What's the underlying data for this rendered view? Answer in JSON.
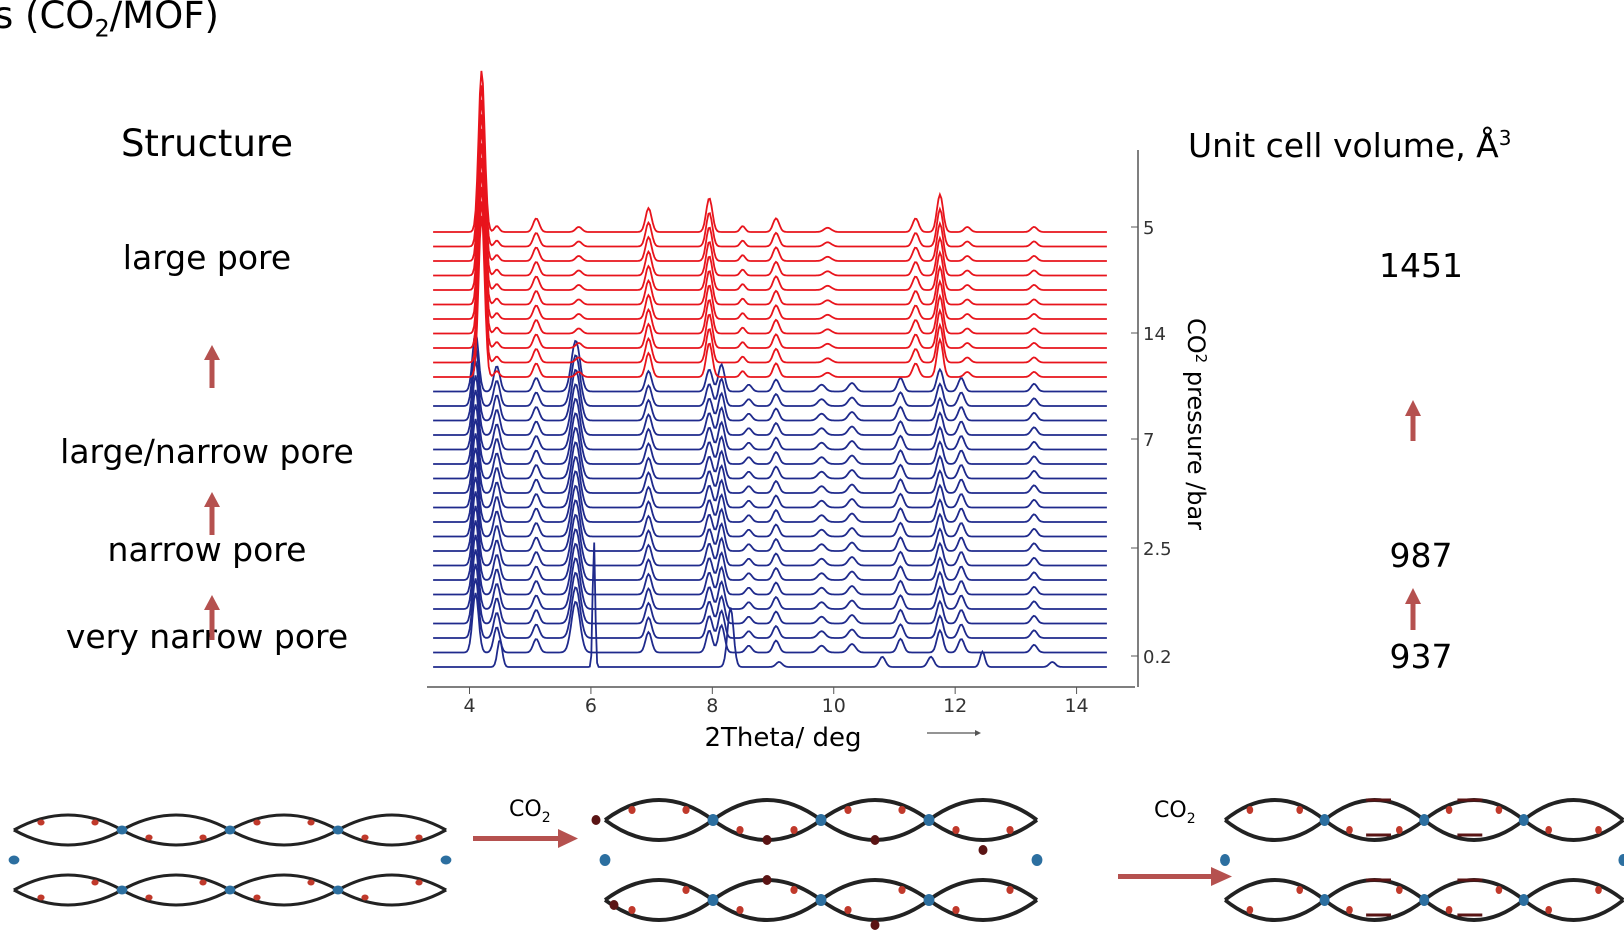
{
  "header": {
    "title_prefix": "s (CO",
    "title_sub": "2",
    "title_suffix": "/MOF)"
  },
  "left": {
    "heading": "Structure",
    "labels": [
      "large pore",
      "large/narrow pore",
      "narrow pore",
      "very narrow pore"
    ]
  },
  "right": {
    "heading_text": "Unit cell volume, Å",
    "heading_sup": "3",
    "values": [
      "1451",
      "987",
      "937"
    ]
  },
  "colors": {
    "red": "#e8141c",
    "blue": "#1f2a8c",
    "arrow": "#b5514f"
  },
  "chart_data": {
    "type": "line",
    "title": "",
    "xlabel": "2Theta/ deg",
    "ylabel_prefix": "CO",
    "ylabel_sub": "2",
    "ylabel_suffix": " pressure /bar",
    "xlim": [
      3.3,
      14.6
    ],
    "x_ticks": [
      "4",
      "6",
      "8",
      "10",
      "12",
      "14"
    ],
    "x_tick_values": [
      4,
      6,
      8,
      10,
      12,
      14
    ],
    "pressure_ticks": [
      "5",
      "14",
      "7",
      "2.5",
      "0.2"
    ],
    "series_groups": [
      {
        "color": "red",
        "count": 11,
        "peaks": [
          {
            "x": 4.2,
            "h": 9.5,
            "w": 0.05
          },
          {
            "x": 4.45,
            "h": 0.35,
            "w": 0.04
          },
          {
            "x": 5.1,
            "h": 0.8,
            "w": 0.05
          },
          {
            "x": 5.8,
            "h": 0.3,
            "w": 0.05
          },
          {
            "x": 6.95,
            "h": 1.4,
            "w": 0.05
          },
          {
            "x": 7.95,
            "h": 2.0,
            "w": 0.05
          },
          {
            "x": 8.5,
            "h": 0.35,
            "w": 0.04
          },
          {
            "x": 9.05,
            "h": 0.8,
            "w": 0.05
          },
          {
            "x": 9.9,
            "h": 0.25,
            "w": 0.06
          },
          {
            "x": 11.35,
            "h": 0.8,
            "w": 0.05
          },
          {
            "x": 11.75,
            "h": 2.2,
            "w": 0.05
          },
          {
            "x": 12.2,
            "h": 0.3,
            "w": 0.05
          },
          {
            "x": 13.3,
            "h": 0.3,
            "w": 0.05
          }
        ]
      },
      {
        "color": "blue",
        "count": 20,
        "peaks": [
          {
            "x": 4.1,
            "h": 3.5,
            "w": 0.05
          },
          {
            "x": 4.45,
            "h": 1.5,
            "w": 0.05
          },
          {
            "x": 5.1,
            "h": 0.8,
            "w": 0.05
          },
          {
            "x": 5.75,
            "h": 3.0,
            "w": 0.07
          },
          {
            "x": 6.95,
            "h": 1.2,
            "w": 0.05
          },
          {
            "x": 7.95,
            "h": 1.3,
            "w": 0.05
          },
          {
            "x": 8.15,
            "h": 1.6,
            "w": 0.05
          },
          {
            "x": 8.6,
            "h": 0.4,
            "w": 0.05
          },
          {
            "x": 9.05,
            "h": 0.7,
            "w": 0.05
          },
          {
            "x": 9.8,
            "h": 0.4,
            "w": 0.06
          },
          {
            "x": 10.3,
            "h": 0.5,
            "w": 0.06
          },
          {
            "x": 11.1,
            "h": 0.8,
            "w": 0.05
          },
          {
            "x": 11.75,
            "h": 1.3,
            "w": 0.05
          },
          {
            "x": 12.1,
            "h": 0.8,
            "w": 0.05
          },
          {
            "x": 13.3,
            "h": 0.45,
            "w": 0.05
          }
        ]
      }
    ],
    "bottom_trace_peaks": [
      {
        "x": 4.5,
        "h": 1.6,
        "w": 0.04
      },
      {
        "x": 6.05,
        "h": 7.5,
        "w": 0.02
      },
      {
        "x": 8.3,
        "h": 3.5,
        "w": 0.05
      },
      {
        "x": 9.1,
        "h": 0.3,
        "w": 0.05
      },
      {
        "x": 10.8,
        "h": 0.6,
        "w": 0.05
      },
      {
        "x": 11.6,
        "h": 0.6,
        "w": 0.05
      },
      {
        "x": 12.45,
        "h": 0.9,
        "w": 0.04
      },
      {
        "x": 13.6,
        "h": 0.3,
        "w": 0.05
      }
    ]
  },
  "bottom": {
    "arrow_label_prefix": "CO",
    "arrow_label_sub": "2"
  }
}
